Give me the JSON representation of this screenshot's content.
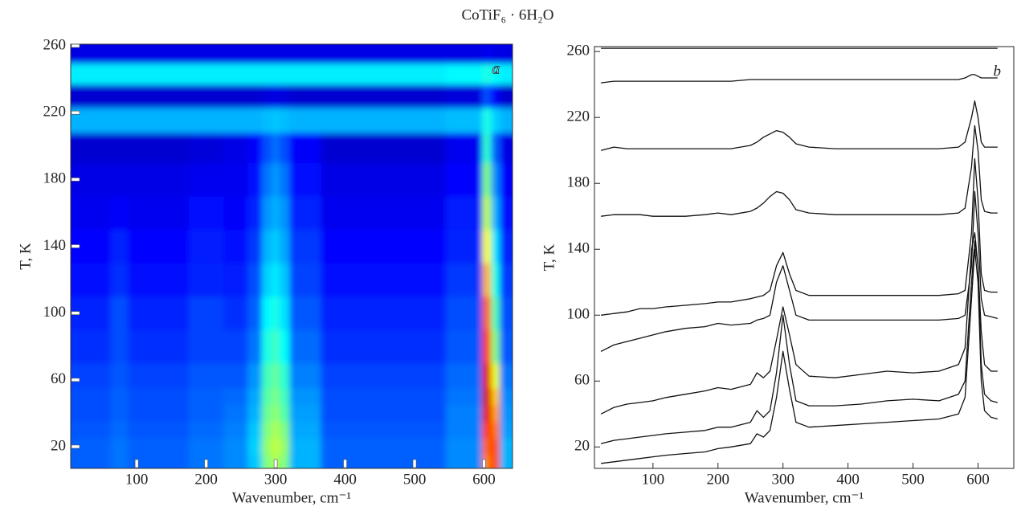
{
  "title": "CoTiF₆ · 6H₂O",
  "chart_data": [
    {
      "type": "heatmap",
      "annotation": "a",
      "xlabel": "Wavenumber, cm⁻¹",
      "ylabel": "T, K",
      "colormap": "jet",
      "xlim": [
        5,
        641
      ],
      "ylim": [
        7,
        261
      ],
      "xticks": [
        100,
        200,
        300,
        400,
        500,
        600
      ],
      "yticks": [
        20,
        60,
        100,
        140,
        180,
        220,
        260
      ],
      "x": [
        20,
        50,
        75,
        100,
        150,
        200,
        250,
        270,
        290,
        300,
        310,
        330,
        400,
        500,
        590,
        605,
        615,
        630
      ],
      "y": [
        10,
        20,
        30,
        40,
        50,
        60,
        80,
        100,
        120,
        140,
        160,
        180,
        200,
        216,
        230,
        244,
        255
      ],
      "z": [
        [
          0.22,
          0.22,
          0.24,
          0.22,
          0.22,
          0.24,
          0.26,
          0.32,
          0.5,
          0.55,
          0.5,
          0.3,
          0.22,
          0.22,
          0.26,
          0.75,
          0.8,
          0.3
        ],
        [
          0.22,
          0.22,
          0.24,
          0.22,
          0.22,
          0.24,
          0.26,
          0.33,
          0.52,
          0.57,
          0.52,
          0.3,
          0.22,
          0.22,
          0.26,
          0.78,
          0.8,
          0.3
        ],
        [
          0.21,
          0.21,
          0.23,
          0.21,
          0.21,
          0.23,
          0.25,
          0.32,
          0.5,
          0.55,
          0.5,
          0.29,
          0.21,
          0.21,
          0.25,
          0.82,
          0.76,
          0.28
        ],
        [
          0.2,
          0.2,
          0.22,
          0.2,
          0.2,
          0.22,
          0.24,
          0.3,
          0.48,
          0.52,
          0.46,
          0.28,
          0.2,
          0.2,
          0.25,
          0.9,
          0.72,
          0.27
        ],
        [
          0.2,
          0.2,
          0.22,
          0.2,
          0.2,
          0.22,
          0.23,
          0.29,
          0.46,
          0.5,
          0.44,
          0.27,
          0.2,
          0.2,
          0.24,
          0.92,
          0.68,
          0.26
        ],
        [
          0.19,
          0.19,
          0.21,
          0.19,
          0.19,
          0.21,
          0.21,
          0.27,
          0.44,
          0.48,
          0.42,
          0.25,
          0.19,
          0.19,
          0.23,
          0.9,
          0.6,
          0.24
        ],
        [
          0.17,
          0.17,
          0.2,
          0.17,
          0.17,
          0.19,
          0.19,
          0.24,
          0.4,
          0.44,
          0.38,
          0.23,
          0.17,
          0.17,
          0.21,
          0.82,
          0.5,
          0.21
        ],
        [
          0.16,
          0.16,
          0.2,
          0.16,
          0.16,
          0.19,
          0.17,
          0.22,
          0.37,
          0.4,
          0.35,
          0.21,
          0.16,
          0.16,
          0.2,
          0.78,
          0.45,
          0.2
        ],
        [
          0.14,
          0.14,
          0.17,
          0.14,
          0.14,
          0.16,
          0.15,
          0.2,
          0.33,
          0.36,
          0.32,
          0.19,
          0.14,
          0.14,
          0.18,
          0.7,
          0.4,
          0.18
        ],
        [
          0.13,
          0.13,
          0.16,
          0.13,
          0.13,
          0.15,
          0.14,
          0.18,
          0.3,
          0.33,
          0.29,
          0.18,
          0.13,
          0.13,
          0.16,
          0.62,
          0.35,
          0.16
        ],
        [
          0.11,
          0.11,
          0.12,
          0.11,
          0.11,
          0.14,
          0.12,
          0.16,
          0.27,
          0.3,
          0.27,
          0.16,
          0.11,
          0.11,
          0.15,
          0.56,
          0.3,
          0.14
        ],
        [
          0.1,
          0.1,
          0.1,
          0.1,
          0.1,
          0.11,
          0.11,
          0.14,
          0.24,
          0.28,
          0.24,
          0.14,
          0.1,
          0.1,
          0.13,
          0.5,
          0.26,
          0.12
        ],
        [
          0.08,
          0.08,
          0.08,
          0.08,
          0.08,
          0.09,
          0.1,
          0.12,
          0.2,
          0.24,
          0.2,
          0.12,
          0.08,
          0.08,
          0.11,
          0.42,
          0.22,
          0.1
        ],
        [
          0.3,
          0.3,
          0.3,
          0.3,
          0.3,
          0.3,
          0.3,
          0.3,
          0.31,
          0.32,
          0.31,
          0.3,
          0.3,
          0.3,
          0.31,
          0.4,
          0.33,
          0.3
        ],
        [
          0.08,
          0.08,
          0.08,
          0.08,
          0.08,
          0.08,
          0.08,
          0.08,
          0.09,
          0.1,
          0.09,
          0.08,
          0.08,
          0.08,
          0.09,
          0.2,
          0.12,
          0.08
        ],
        [
          0.36,
          0.36,
          0.36,
          0.36,
          0.36,
          0.36,
          0.36,
          0.36,
          0.36,
          0.36,
          0.36,
          0.36,
          0.36,
          0.36,
          0.37,
          0.4,
          0.38,
          0.36
        ],
        [
          0.1,
          0.1,
          0.1,
          0.1,
          0.1,
          0.1,
          0.1,
          0.1,
          0.1,
          0.1,
          0.1,
          0.1,
          0.1,
          0.1,
          0.1,
          0.11,
          0.1,
          0.1
        ]
      ]
    },
    {
      "type": "line",
      "annotation": "b",
      "xlabel": "Wavenumber, cm⁻¹",
      "ylabel": "T, K",
      "xlim": [
        10,
        655
      ],
      "ylim": [
        7,
        263
      ],
      "xticks": [
        100,
        200,
        300,
        400,
        500,
        600
      ],
      "yticks": [
        20,
        60,
        100,
        140,
        180,
        220,
        260
      ],
      "x": [
        20,
        40,
        60,
        80,
        100,
        120,
        150,
        180,
        200,
        220,
        250,
        260,
        270,
        280,
        290,
        300,
        310,
        320,
        340,
        380,
        420,
        460,
        500,
        540,
        570,
        580,
        590,
        595,
        600,
        605,
        610,
        620,
        630
      ],
      "series": [
        {
          "color": "#111111",
          "values": [
            10,
            11,
            12,
            13,
            14,
            15,
            16,
            17,
            19,
            20,
            22,
            28,
            26,
            30,
            50,
            78,
            55,
            35,
            32,
            33,
            34,
            35,
            36,
            37,
            40,
            50,
            110,
            140,
            120,
            60,
            42,
            38,
            37
          ]
        },
        {
          "color": "#111111",
          "values": [
            22,
            24,
            25,
            26,
            27,
            28,
            29,
            30,
            32,
            32,
            35,
            42,
            38,
            42,
            65,
            100,
            70,
            48,
            45,
            45,
            46,
            48,
            49,
            48,
            52,
            60,
            120,
            145,
            130,
            70,
            52,
            48,
            47
          ]
        },
        {
          "color": "#111111",
          "values": [
            40,
            44,
            46,
            47,
            48,
            50,
            52,
            54,
            56,
            55,
            58,
            65,
            62,
            66,
            85,
            105,
            88,
            70,
            63,
            62,
            64,
            66,
            65,
            66,
            70,
            80,
            140,
            150,
            130,
            90,
            70,
            66,
            66
          ]
        },
        {
          "color": "#111111",
          "values": [
            78,
            82,
            84,
            86,
            88,
            90,
            92,
            93,
            95,
            94,
            95,
            97,
            98,
            100,
            120,
            130,
            115,
            100,
            97,
            97,
            97,
            97,
            97,
            97,
            98,
            100,
            130,
            175,
            150,
            110,
            100,
            99,
            98
          ]
        },
        {
          "color": "#111111",
          "values": [
            100,
            101,
            102,
            104,
            104,
            105,
            106,
            107,
            108,
            108,
            110,
            111,
            112,
            115,
            130,
            138,
            125,
            115,
            112,
            112,
            112,
            112,
            112,
            112,
            113,
            115,
            150,
            195,
            170,
            125,
            115,
            114,
            114
          ]
        },
        {
          "color": "#111111",
          "values": [
            160,
            161,
            161,
            161,
            160,
            160,
            160,
            161,
            162,
            161,
            163,
            165,
            168,
            172,
            175,
            174,
            170,
            164,
            162,
            161,
            161,
            161,
            161,
            161,
            162,
            165,
            190,
            215,
            200,
            170,
            163,
            162,
            162
          ]
        },
        {
          "color": "#111111",
          "values": [
            200,
            202,
            201,
            201,
            201,
            201,
            201,
            201,
            201,
            201,
            203,
            205,
            208,
            210,
            212,
            211,
            208,
            204,
            202,
            201,
            201,
            201,
            201,
            201,
            202,
            205,
            220,
            230,
            220,
            205,
            202,
            202,
            202
          ]
        },
        {
          "color": "#111111",
          "values": [
            241,
            242,
            242,
            242,
            242,
            242,
            242,
            242,
            242,
            242,
            243,
            243,
            243,
            243,
            243,
            243,
            243,
            243,
            243,
            243,
            243,
            243,
            243,
            243,
            243,
            244,
            246,
            246,
            245,
            244,
            244,
            244,
            244
          ]
        },
        {
          "color": "#111111",
          "values": [
            262,
            262,
            262,
            262,
            262,
            262,
            262,
            262,
            262,
            262,
            262,
            262,
            262,
            262,
            262,
            262,
            262,
            262,
            262,
            262,
            262,
            262,
            262,
            262,
            262,
            262,
            262,
            262,
            262,
            262,
            262,
            262,
            262
          ]
        }
      ]
    }
  ]
}
